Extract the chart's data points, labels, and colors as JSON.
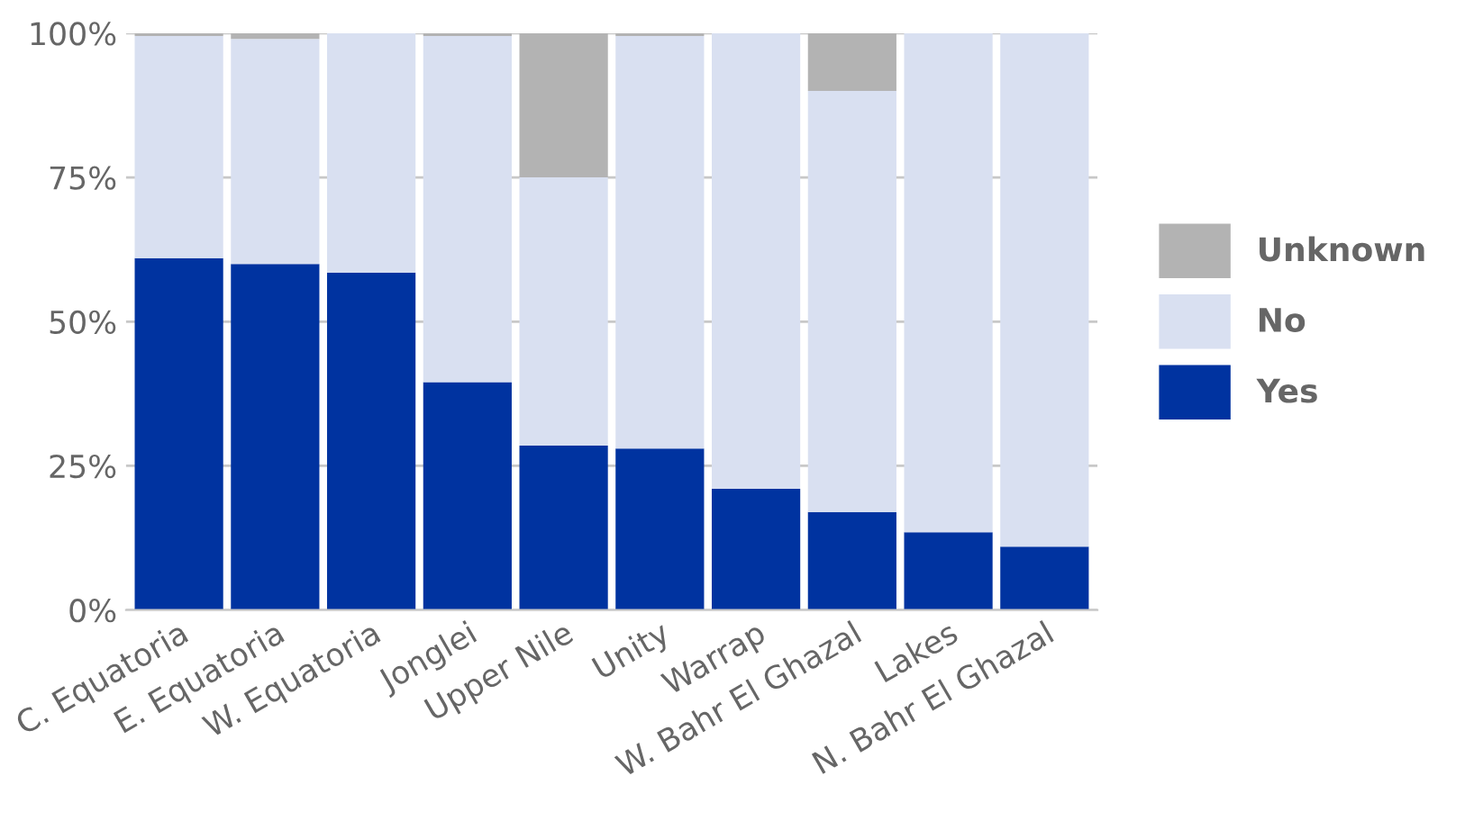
{
  "chart_data": {
    "type": "bar",
    "stacked": true,
    "categories": [
      "C. Equatoria",
      "E. Equatoria",
      "W. Equatoria",
      "Jonglei",
      "Upper Nile",
      "Unity",
      "Warrap",
      "W. Bahr El Ghazal",
      "Lakes",
      "N. Bahr El Ghazal"
    ],
    "series": [
      {
        "name": "Yes",
        "color": "#0033a0",
        "values": [
          61,
          60,
          58.5,
          39.5,
          28.5,
          28,
          21,
          17,
          13.5,
          11
        ]
      },
      {
        "name": "No",
        "color": "#d9e0f1",
        "values": [
          38.5,
          39,
          41.5,
          60,
          46.5,
          71.5,
          79,
          73,
          86.5,
          89
        ]
      },
      {
        "name": "Unknown",
        "color": "#b3b3b3",
        "values": [
          0.5,
          1,
          0,
          0.5,
          25,
          0.5,
          0,
          10,
          0,
          0
        ]
      }
    ],
    "ylim": [
      0,
      100
    ],
    "yticks": [
      {
        "value": 0,
        "label": "0%"
      },
      {
        "value": 25,
        "label": "25%"
      },
      {
        "value": 50,
        "label": "50%"
      },
      {
        "value": 75,
        "label": "75%"
      },
      {
        "value": 100,
        "label": "100%"
      }
    ],
    "grid": "y",
    "legend": "right"
  }
}
